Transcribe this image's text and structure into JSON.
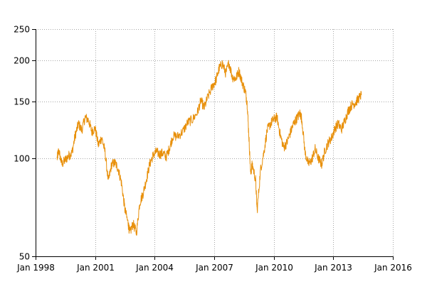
{
  "chart_data": {
    "type": "line",
    "y_scale": "log",
    "ylim": [
      50,
      250
    ],
    "xlim": [
      "1998-01-01",
      "2016-01-01"
    ],
    "y_ticks": [
      {
        "value": 50,
        "label": "50"
      },
      {
        "value": 100,
        "label": "100"
      },
      {
        "value": 150,
        "label": "150"
      },
      {
        "value": 200,
        "label": "200"
      },
      {
        "value": 250,
        "label": "250"
      }
    ],
    "x_ticks": [
      {
        "date": "1998-01-01",
        "label": "Jan 1998"
      },
      {
        "date": "2001-01-01",
        "label": "Jan 2001"
      },
      {
        "date": "2004-01-01",
        "label": "Jan 2004"
      },
      {
        "date": "2007-01-01",
        "label": "Jan 2007"
      },
      {
        "date": "2010-01-01",
        "label": "Jan 2010"
      },
      {
        "date": "2013-01-01",
        "label": "Jan 2013"
      },
      {
        "date": "2016-01-01",
        "label": "Jan 2016"
      }
    ],
    "grid": true,
    "series": [
      {
        "color": "#e8900b",
        "points": [
          [
            "1999-02-01",
            100
          ],
          [
            "1999-03-01",
            106
          ],
          [
            "1999-05-01",
            96
          ],
          [
            "1999-07-01",
            99
          ],
          [
            "1999-09-01",
            102
          ],
          [
            "1999-11-01",
            104
          ],
          [
            "2000-01-01",
            118
          ],
          [
            "2000-03-01",
            128
          ],
          [
            "2000-05-01",
            122
          ],
          [
            "2000-07-01",
            134
          ],
          [
            "2000-09-01",
            131
          ],
          [
            "2000-11-01",
            121
          ],
          [
            "2001-01-01",
            124
          ],
          [
            "2001-03-01",
            110
          ],
          [
            "2001-05-01",
            116
          ],
          [
            "2001-07-01",
            105
          ],
          [
            "2001-09-01",
            85
          ],
          [
            "2001-11-01",
            96
          ],
          [
            "2002-01-01",
            97
          ],
          [
            "2002-03-01",
            93
          ],
          [
            "2002-05-01",
            84
          ],
          [
            "2002-07-01",
            70
          ],
          [
            "2002-09-01",
            63
          ],
          [
            "2002-10-01",
            59
          ],
          [
            "2002-12-01",
            63
          ],
          [
            "2003-02-01",
            59
          ],
          [
            "2003-04-01",
            73
          ],
          [
            "2003-06-01",
            78
          ],
          [
            "2003-08-01",
            86
          ],
          [
            "2003-10-01",
            96
          ],
          [
            "2003-12-01",
            102
          ],
          [
            "2004-02-01",
            105
          ],
          [
            "2004-04-01",
            103
          ],
          [
            "2004-06-01",
            104
          ],
          [
            "2004-08-01",
            101
          ],
          [
            "2004-10-01",
            108
          ],
          [
            "2004-12-01",
            117
          ],
          [
            "2005-03-01",
            117
          ],
          [
            "2005-06-01",
            121
          ],
          [
            "2005-09-01",
            129
          ],
          [
            "2005-12-01",
            132
          ],
          [
            "2006-03-01",
            139
          ],
          [
            "2006-05-01",
            151
          ],
          [
            "2006-07-01",
            143
          ],
          [
            "2006-09-01",
            154
          ],
          [
            "2006-12-01",
            167
          ],
          [
            "2007-02-01",
            174
          ],
          [
            "2007-04-01",
            189
          ],
          [
            "2007-06-01",
            196
          ],
          [
            "2007-08-01",
            183
          ],
          [
            "2007-10-01",
            197
          ],
          [
            "2007-12-01",
            178
          ],
          [
            "2008-02-01",
            176
          ],
          [
            "2008-04-01",
            186
          ],
          [
            "2008-06-01",
            171
          ],
          [
            "2008-08-01",
            160
          ],
          [
            "2008-09-01",
            146
          ],
          [
            "2008-10-01",
            116
          ],
          [
            "2008-11-01",
            90
          ],
          [
            "2008-12-01",
            96
          ],
          [
            "2009-02-01",
            86
          ],
          [
            "2009-03-01",
            69
          ],
          [
            "2009-05-01",
            92
          ],
          [
            "2009-07-01",
            104
          ],
          [
            "2009-09-01",
            122
          ],
          [
            "2009-11-01",
            128
          ],
          [
            "2010-01-01",
            132
          ],
          [
            "2010-03-01",
            134
          ],
          [
            "2010-05-01",
            118
          ],
          [
            "2010-07-01",
            108
          ],
          [
            "2010-09-01",
            112
          ],
          [
            "2010-11-01",
            120
          ],
          [
            "2011-01-01",
            128
          ],
          [
            "2011-03-01",
            133
          ],
          [
            "2011-05-01",
            138
          ],
          [
            "2011-06-01",
            132
          ],
          [
            "2011-08-01",
            104
          ],
          [
            "2011-10-01",
            96
          ],
          [
            "2011-12-01",
            99
          ],
          [
            "2012-02-01",
            107
          ],
          [
            "2012-04-01",
            100
          ],
          [
            "2012-06-01",
            96
          ],
          [
            "2012-08-01",
            106
          ],
          [
            "2012-10-01",
            112
          ],
          [
            "2012-12-01",
            116
          ],
          [
            "2013-02-01",
            124
          ],
          [
            "2013-04-01",
            128
          ],
          [
            "2013-06-01",
            123
          ],
          [
            "2013-08-01",
            131
          ],
          [
            "2013-10-01",
            140
          ],
          [
            "2013-12-01",
            146
          ],
          [
            "2014-02-01",
            148
          ],
          [
            "2014-04-01",
            152
          ],
          [
            "2014-06-01",
            157
          ]
        ]
      }
    ]
  }
}
